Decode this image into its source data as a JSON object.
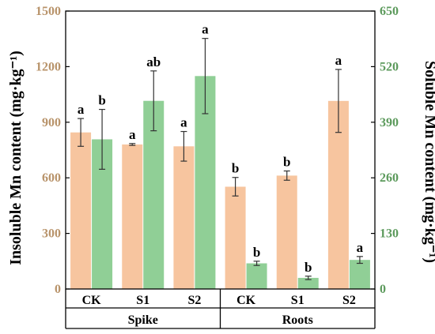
{
  "chart_data": {
    "type": "bar",
    "groups": [
      {
        "label": "Spike",
        "categories": [
          "CK",
          "S1",
          "S2"
        ]
      },
      {
        "label": "Roots",
        "categories": [
          "CK",
          "S1",
          "S2"
        ]
      }
    ],
    "categories": [
      "CK",
      "S1",
      "S2",
      "CK",
      "S1",
      "S2"
    ],
    "series": [
      {
        "name": "",
        "axis": "left",
        "color": "#F7C59F",
        "values": [
          845,
          780,
          770,
          552,
          612,
          1015
        ],
        "errors": [
          75,
          5,
          80,
          50,
          25,
          170
        ],
        "labels": [
          "a",
          "a",
          "a",
          "b",
          "b",
          "a"
        ]
      },
      {
        "name": "",
        "axis": "right",
        "color": "#90CF96",
        "values": [
          350,
          440,
          498,
          60,
          26,
          68
        ],
        "errors": [
          70,
          70,
          88,
          5,
          4,
          8
        ],
        "labels": [
          "b",
          "ab",
          "a",
          "b",
          "b",
          "a"
        ]
      }
    ],
    "left_axis": {
      "label": "Insoluble Mn content (mg·kg⁻¹)",
      "ylim": [
        0,
        1500
      ],
      "ticks": [
        "0",
        "300",
        "600",
        "900",
        "1200",
        "1500"
      ],
      "color": "#B8936A"
    },
    "right_axis": {
      "label": "Soluble Mn content (mg·kg⁻¹)",
      "ylim": [
        0,
        650
      ],
      "ticks": [
        "0",
        "130",
        "260",
        "390",
        "520",
        "650"
      ],
      "color": "#5C9A5C"
    },
    "legend": "none",
    "grid": false
  }
}
